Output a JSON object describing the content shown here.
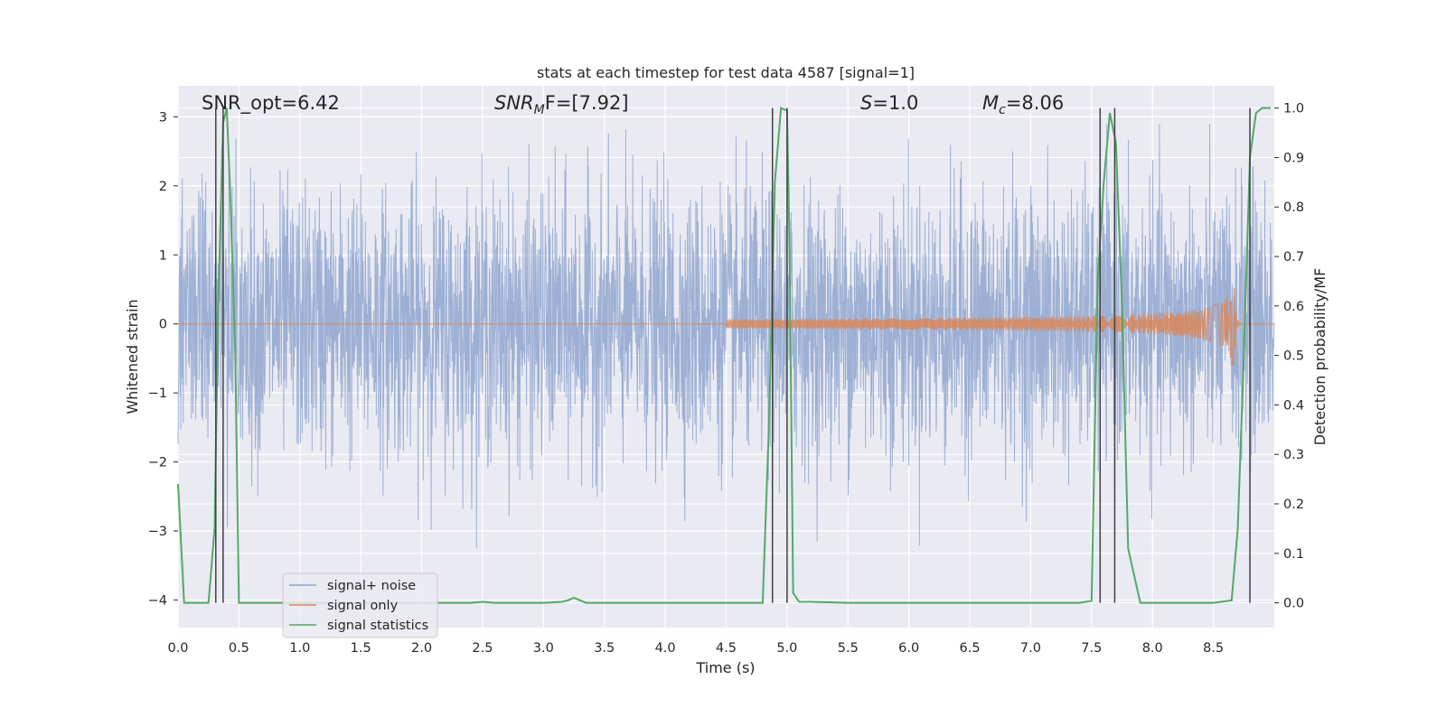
{
  "chart_data": {
    "type": "line",
    "title": "stats at each timestep for test data 4587 [signal=1]",
    "xlabel": "Time (s)",
    "ylabel": "Whitened strain",
    "y2label": "Detection probability/MF",
    "xlim": [
      0,
      9.0
    ],
    "ylim": [
      -4.4,
      3.45
    ],
    "y2lim": [
      -0.05,
      1.045
    ],
    "xticks": [
      0.0,
      0.5,
      1.0,
      1.5,
      2.0,
      2.5,
      3.0,
      3.5,
      4.0,
      4.5,
      5.0,
      5.5,
      6.0,
      6.5,
      7.0,
      7.5,
      8.0,
      8.5
    ],
    "xtick_labels": [
      "0.0",
      "0.5",
      "1.0",
      "1.5",
      "2.0",
      "2.5",
      "3.0",
      "3.5",
      "4.0",
      "4.5",
      "5.0",
      "5.5",
      "6.0",
      "6.5",
      "7.0",
      "7.5",
      "8.0",
      "8.5"
    ],
    "yticks": [
      -4,
      -3,
      -2,
      -1,
      0,
      1,
      2,
      3
    ],
    "ytick_labels": [
      "−4",
      "−3",
      "−2",
      "−1",
      "0",
      "1",
      "2",
      "3"
    ],
    "y2ticks": [
      0.0,
      0.1,
      0.2,
      0.3,
      0.4,
      0.5,
      0.6,
      0.7,
      0.8,
      0.9,
      1.0
    ],
    "y2tick_labels": [
      "0.0",
      "0.1",
      "0.2",
      "0.3",
      "0.4",
      "0.5",
      "0.6",
      "0.7",
      "0.8",
      "0.9",
      "1.0"
    ],
    "annotations": [
      {
        "prefix": "SNR_opt=6.42",
        "sub": "",
        "suffix": "",
        "italic": false
      },
      {
        "prefix": "SNR",
        "sub": "M",
        "suffix": "F=[7.92]",
        "italic": true
      },
      {
        "prefix": "S",
        "sub": "",
        "suffix": "=1.0",
        "italic": true
      },
      {
        "prefix": "M",
        "sub": "c",
        "suffix": "=8.06",
        "italic": true
      }
    ],
    "series": [
      {
        "name": "signal+ noise",
        "color": "#8fa6cf",
        "axis": "left",
        "kind": "noise",
        "amplitude_sd": 0.95,
        "range": [
          -3.25,
          2.9
        ]
      },
      {
        "name": "signal only",
        "color": "#dd8452",
        "axis": "left",
        "kind": "chirp",
        "onset": 4.5,
        "merger": 8.67,
        "peak_amplitude": 0.75
      },
      {
        "name": "signal statistics",
        "color": "#55a868",
        "axis": "right",
        "x": [
          0.0,
          0.05,
          0.1,
          0.15,
          0.2,
          0.25,
          0.3,
          0.33,
          0.37,
          0.4,
          0.43,
          0.47,
          0.5,
          0.55,
          0.6,
          0.8,
          1.0,
          1.5,
          2.0,
          2.4,
          2.5,
          2.6,
          3.0,
          3.15,
          3.2,
          3.25,
          3.3,
          3.35,
          3.5,
          4.0,
          4.5,
          4.8,
          4.85,
          4.9,
          4.95,
          5.0,
          5.02,
          5.05,
          5.1,
          5.2,
          5.5,
          6.0,
          6.5,
          7.0,
          7.4,
          7.5,
          7.55,
          7.6,
          7.65,
          7.7,
          7.75,
          7.8,
          7.9,
          8.0,
          8.5,
          8.65,
          8.7,
          8.75,
          8.8,
          8.85,
          8.9,
          8.97
        ],
        "y": [
          0.24,
          0.0,
          0.0,
          0.0,
          0.0,
          0.0,
          0.15,
          0.6,
          0.97,
          1.0,
          0.82,
          0.5,
          0.0,
          0.0,
          0.0,
          0.0,
          0.0,
          0.0,
          0.0,
          0.0,
          0.002,
          0.0,
          0.0,
          0.002,
          0.005,
          0.01,
          0.005,
          0.0,
          0.0,
          0.0,
          0.0,
          0.0,
          0.35,
          0.85,
          1.0,
          0.995,
          0.72,
          0.02,
          0.002,
          0.002,
          0.0,
          0.0,
          0.0,
          0.0,
          0.0,
          0.004,
          0.65,
          0.85,
          0.99,
          0.93,
          0.6,
          0.11,
          0.0,
          0.0,
          0.0,
          0.005,
          0.15,
          0.5,
          0.9,
          0.99,
          1.0,
          1.0
        ]
      },
      {
        "name": "vertical markers",
        "color": "#404040",
        "axis": "right",
        "kind": "vlines",
        "x": [
          0.31,
          0.37,
          4.88,
          5.0,
          7.57,
          7.69,
          8.8
        ],
        "ymin": 0.0,
        "ymax": 1.0
      }
    ],
    "legend": {
      "location": "lower-left",
      "entries": [
        "signal+ noise",
        "signal only",
        "signal statistics"
      ]
    },
    "grid": true
  }
}
